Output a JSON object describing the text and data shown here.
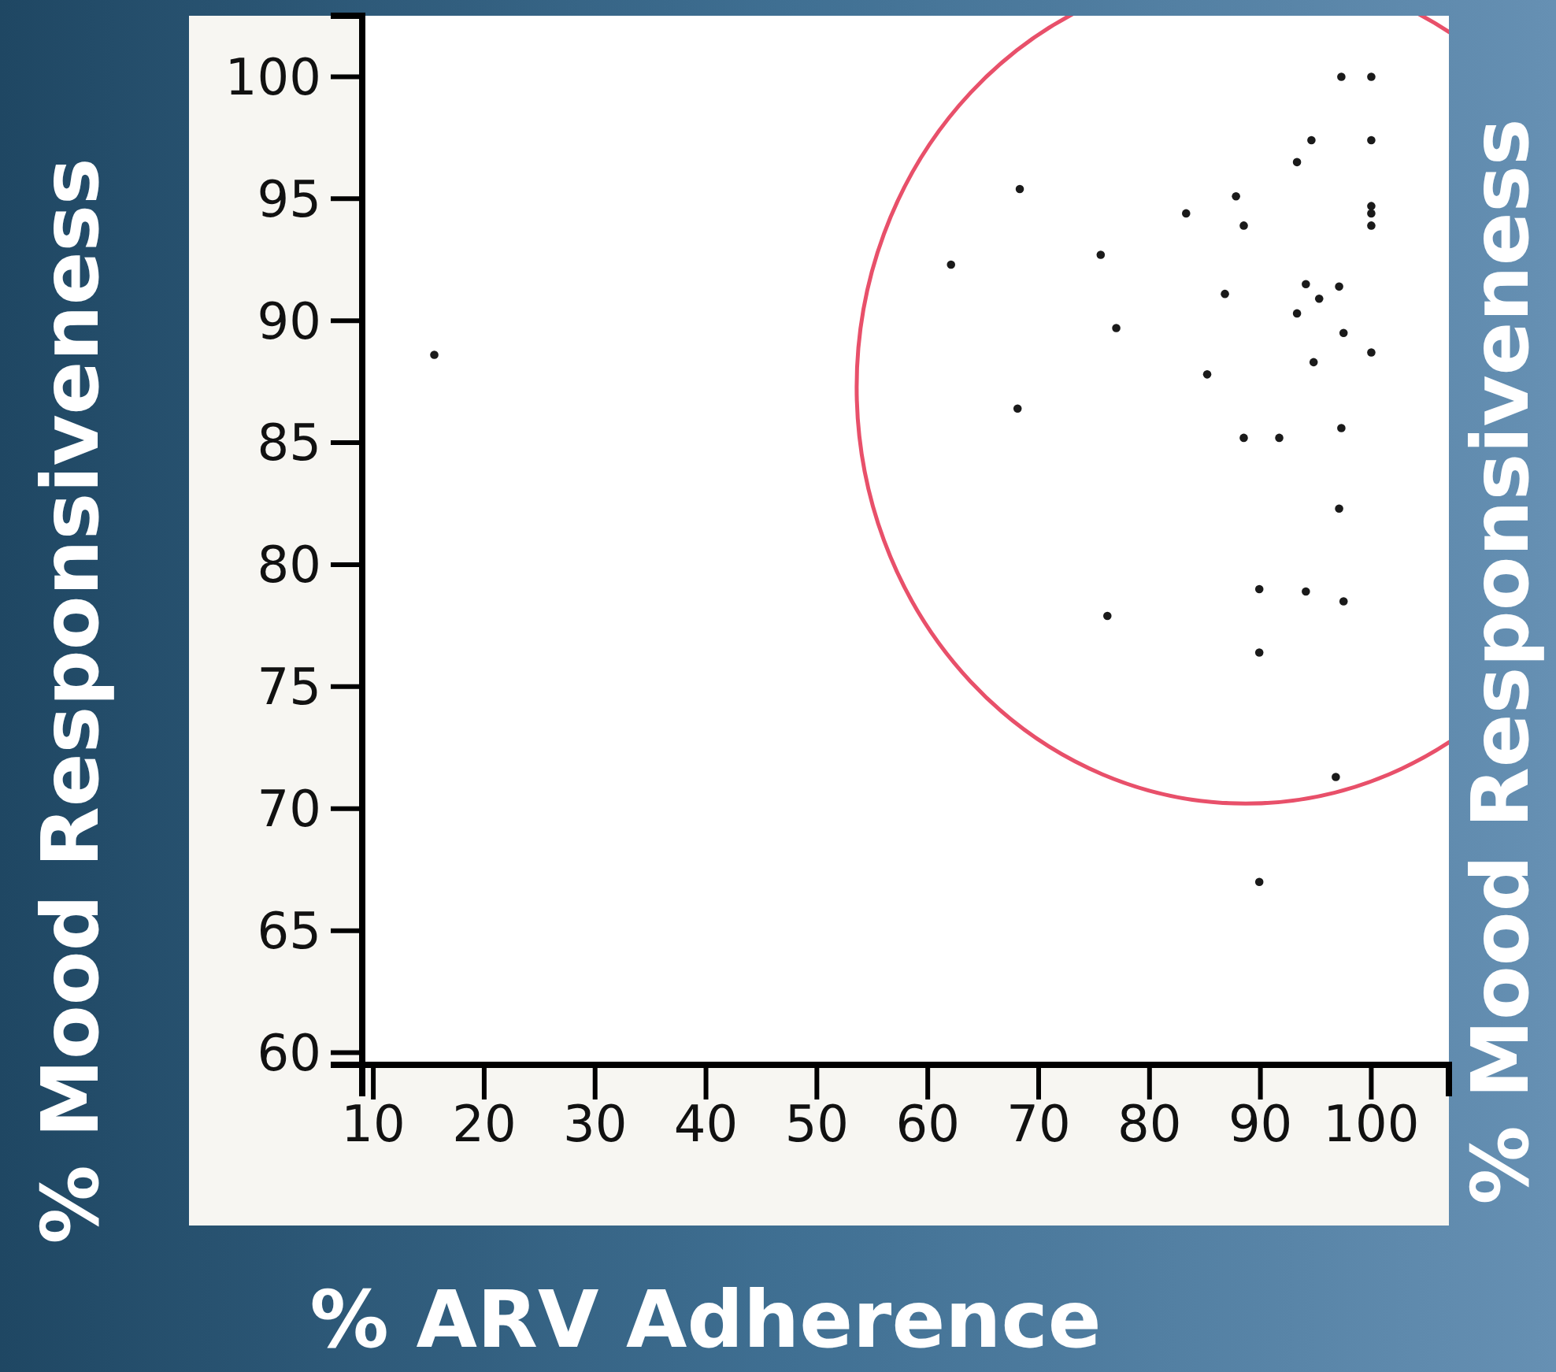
{
  "chart_data": {
    "type": "scatter",
    "xlabel": "% ARV Adherence",
    "ylabel": "% Mood Responsiveness",
    "y2label": "% Mood Responsiveness",
    "x": [
      15.5,
      68.3,
      62.1,
      75.6,
      77.0,
      68.1,
      83.3,
      87.8,
      88.5,
      86.8,
      85.2,
      88.5,
      91.7,
      93.3,
      94.6,
      97.3,
      100,
      100,
      100,
      100,
      100,
      94.1,
      95.3,
      97.1,
      93.3,
      97.5,
      94.8,
      100,
      97.3,
      97.1,
      89.9,
      94.1,
      97.5,
      76.2,
      89.9,
      96.8,
      89.9
    ],
    "values": [
      88.6,
      95.4,
      92.3,
      92.7,
      89.7,
      86.4,
      94.4,
      95.1,
      93.9,
      91.1,
      87.8,
      85.2,
      85.2,
      96.5,
      97.4,
      100,
      100,
      97.4,
      94.7,
      94.4,
      93.9,
      91.5,
      90.9,
      91.4,
      90.3,
      89.5,
      88.3,
      88.7,
      85.6,
      82.3,
      79.0,
      78.9,
      78.5,
      77.9,
      76.4,
      71.3,
      67.0
    ],
    "color": "#1a1a1a",
    "marker": "circle",
    "xlim": [
      9,
      107
    ],
    "xticks": [
      10,
      20,
      30,
      40,
      50,
      60,
      70,
      80,
      90,
      100
    ],
    "ylim": [
      59.5,
      102.5
    ],
    "yticks": [
      60,
      65,
      70,
      75,
      80,
      85,
      90,
      95,
      100
    ],
    "grid": false
  }
}
